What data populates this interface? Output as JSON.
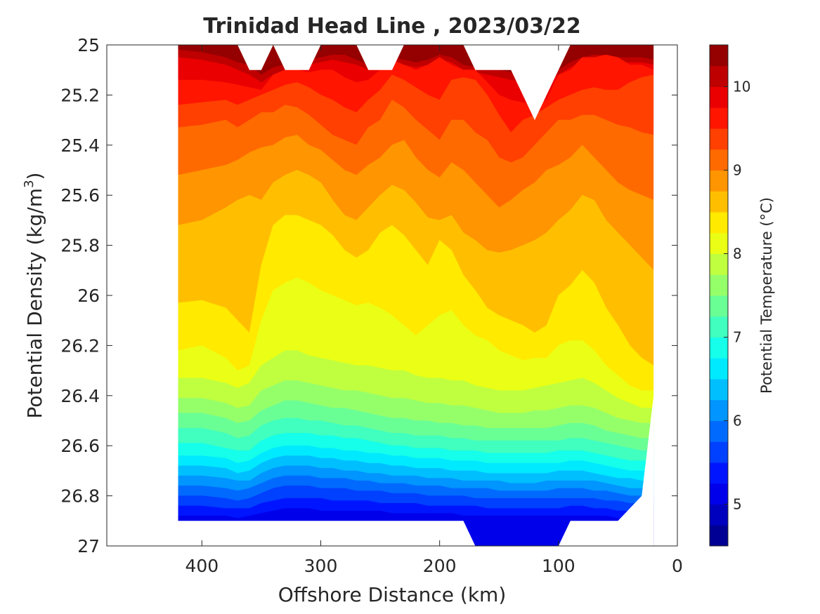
{
  "chart_data": {
    "type": "heatmap",
    "subtype": "filled-contour",
    "title": "Trinidad Head Line , 2023/03/22",
    "xlabel": "Offshore Distance (km)",
    "ylabel_main": "Potential Density (kg/m",
    "ylabel_sup": "3",
    "ylabel_end": ")",
    "xlim": [
      480,
      0
    ],
    "x_reversed": true,
    "ylim": [
      25,
      27
    ],
    "y_reversed": true,
    "x_ticks": [
      400,
      300,
      200,
      100,
      0
    ],
    "x_tick_labels": [
      "400",
      "300",
      "200",
      "100",
      "0"
    ],
    "y_ticks": [
      25,
      25.2,
      25.4,
      25.6,
      25.8,
      26,
      26.2,
      26.4,
      26.6,
      26.8,
      27
    ],
    "y_tick_labels": [
      "25",
      "25.2",
      "25.4",
      "25.6",
      "25.8",
      "26",
      "26.2",
      "26.4",
      "26.6",
      "26.8",
      "27"
    ],
    "colorbar": {
      "label": "Potential Temperature (°C)",
      "range": [
        4.5,
        10.5
      ],
      "step": 0.25,
      "ticks": [
        5,
        6,
        7,
        8,
        9,
        10
      ],
      "tick_labels": [
        "5",
        "6",
        "7",
        "8",
        "9",
        "10"
      ],
      "colormap": "jet"
    },
    "x": [
      420,
      400,
      380,
      370,
      360,
      350,
      340,
      330,
      320,
      310,
      300,
      290,
      280,
      270,
      260,
      250,
      240,
      230,
      220,
      210,
      200,
      190,
      180,
      170,
      160,
      150,
      140,
      130,
      120,
      110,
      100,
      90,
      80,
      70,
      60,
      50,
      40,
      30,
      20
    ],
    "isotherms": [
      {
        "temp": 10.25,
        "y": [
          25.02,
          25.03,
          25.05,
          25.07,
          25.08,
          25.12,
          25.09,
          25.08,
          25.07,
          25.06,
          25.05,
          25.04,
          25.04,
          25.06,
          25.08,
          25.08,
          25.05,
          25.06,
          25.07,
          25.06,
          25.04,
          25.05,
          25.08,
          25.09,
          25.1,
          25.1,
          25.11,
          25.12,
          25.12,
          25.11,
          25.1,
          25.07,
          25.05,
          25.04,
          25.04,
          25.05,
          25.05,
          25.05,
          25.06
        ]
      },
      {
        "temp": 10.0,
        "y": [
          25.05,
          25.06,
          25.08,
          25.1,
          25.12,
          25.15,
          25.12,
          25.1,
          25.09,
          25.08,
          25.07,
          25.06,
          25.07,
          25.08,
          25.1,
          25.1,
          25.07,
          25.08,
          25.09,
          25.08,
          25.06,
          25.07,
          25.1,
          25.11,
          25.12,
          25.13,
          25.14,
          25.15,
          25.15,
          25.14,
          25.12,
          25.09,
          25.07,
          25.06,
          25.06,
          25.07,
          25.07,
          25.07,
          25.08
        ]
      },
      {
        "temp": 9.75,
        "y": [
          25.14,
          25.14,
          25.15,
          25.16,
          25.17,
          25.18,
          25.12,
          25.1,
          25.1,
          25.11,
          25.1,
          25.1,
          25.13,
          25.15,
          25.14,
          25.1,
          25.06,
          25.08,
          25.1,
          25.08,
          25.05,
          25.08,
          25.1,
          25.1,
          25.15,
          25.2,
          25.22,
          25.23,
          25.24,
          25.22,
          25.12,
          25.1,
          25.05,
          25.05,
          25.04,
          25.05,
          25.08,
          25.08,
          25.1
        ]
      },
      {
        "temp": 9.5,
        "y": [
          25.24,
          25.23,
          25.22,
          25.24,
          25.22,
          25.2,
          25.18,
          25.16,
          25.15,
          25.17,
          25.2,
          25.22,
          25.25,
          25.27,
          25.22,
          25.18,
          25.12,
          25.14,
          25.17,
          25.2,
          25.22,
          25.14,
          25.13,
          25.14,
          25.2,
          25.28,
          25.35,
          25.3,
          25.28,
          25.25,
          25.22,
          25.2,
          25.18,
          25.17,
          25.18,
          25.18,
          25.15,
          25.13,
          25.12
        ]
      },
      {
        "temp": 9.25,
        "y": [
          25.33,
          25.32,
          25.3,
          25.33,
          25.3,
          25.27,
          25.27,
          25.24,
          25.25,
          25.28,
          25.32,
          25.36,
          25.38,
          25.4,
          25.33,
          25.3,
          25.22,
          25.25,
          25.3,
          25.34,
          25.38,
          25.3,
          25.3,
          25.35,
          25.38,
          25.45,
          25.47,
          25.45,
          25.4,
          25.35,
          25.3,
          25.3,
          25.28,
          25.28,
          25.3,
          25.32,
          25.33,
          25.35,
          25.36
        ]
      },
      {
        "temp": 9.0,
        "y": [
          25.52,
          25.5,
          25.48,
          25.46,
          25.43,
          25.41,
          25.4,
          25.37,
          25.36,
          25.4,
          25.42,
          25.46,
          25.5,
          25.52,
          25.48,
          25.45,
          25.4,
          25.38,
          25.45,
          25.5,
          25.53,
          25.47,
          25.5,
          25.55,
          25.6,
          25.65,
          25.62,
          25.58,
          25.55,
          25.5,
          25.48,
          25.45,
          25.4,
          25.45,
          25.5,
          25.55,
          25.58,
          25.6,
          25.62
        ]
      },
      {
        "temp": 8.75,
        "y": [
          25.72,
          25.7,
          25.65,
          25.62,
          25.6,
          25.62,
          25.55,
          25.52,
          25.5,
          25.52,
          25.55,
          25.62,
          25.68,
          25.7,
          25.65,
          25.6,
          25.56,
          25.58,
          25.63,
          25.69,
          25.7,
          25.68,
          25.75,
          25.78,
          25.82,
          25.83,
          25.82,
          25.8,
          25.78,
          25.75,
          25.7,
          25.66,
          25.6,
          25.62,
          25.7,
          25.75,
          25.8,
          25.85,
          25.9
        ]
      },
      {
        "temp": 8.5,
        "y": [
          26.03,
          26.02,
          26.05,
          26.1,
          26.15,
          25.88,
          25.72,
          25.68,
          25.68,
          25.7,
          25.72,
          25.76,
          25.82,
          25.85,
          25.82,
          25.75,
          25.72,
          25.76,
          25.82,
          25.88,
          25.78,
          25.82,
          25.92,
          25.98,
          26.05,
          26.08,
          26.1,
          26.12,
          26.15,
          26.12,
          26.0,
          25.96,
          25.9,
          25.95,
          26.05,
          26.12,
          26.2,
          26.25,
          26.28
        ]
      },
      {
        "temp": 8.25,
        "y": [
          26.22,
          26.2,
          26.25,
          26.3,
          26.28,
          26.1,
          25.98,
          25.95,
          25.93,
          25.95,
          25.98,
          26.0,
          26.02,
          26.04,
          26.03,
          26.05,
          26.08,
          26.12,
          26.16,
          26.12,
          26.08,
          26.06,
          26.12,
          26.16,
          26.18,
          26.22,
          26.24,
          26.26,
          26.25,
          26.25,
          26.2,
          26.18,
          26.18,
          26.22,
          26.28,
          26.32,
          26.36,
          26.38,
          26.38
        ]
      },
      {
        "temp": 8.0,
        "y": [
          26.33,
          26.33,
          26.35,
          26.37,
          26.35,
          26.28,
          26.25,
          26.22,
          26.22,
          26.24,
          26.25,
          26.26,
          26.27,
          26.28,
          26.28,
          26.29,
          26.3,
          26.3,
          26.32,
          26.33,
          26.33,
          26.34,
          26.34,
          26.36,
          26.37,
          26.38,
          26.38,
          26.38,
          26.37,
          26.36,
          26.35,
          26.34,
          26.33,
          26.35,
          26.38,
          26.41,
          26.43,
          26.45,
          26.45
        ]
      },
      {
        "temp": 7.75,
        "y": [
          26.41,
          26.41,
          26.43,
          26.45,
          26.44,
          26.38,
          26.36,
          26.34,
          26.34,
          26.35,
          26.36,
          26.37,
          26.38,
          26.38,
          26.39,
          26.4,
          26.41,
          26.41,
          26.42,
          26.43,
          26.43,
          26.44,
          26.44,
          26.45,
          26.46,
          26.47,
          26.47,
          26.47,
          26.46,
          26.46,
          26.45,
          26.44,
          26.44,
          26.45,
          26.47,
          26.49,
          26.5,
          26.51,
          26.51
        ]
      },
      {
        "temp": 7.5,
        "y": [
          26.47,
          26.47,
          26.49,
          26.51,
          26.5,
          26.46,
          26.44,
          26.42,
          26.42,
          26.43,
          26.44,
          26.45,
          26.45,
          26.46,
          26.47,
          26.48,
          26.49,
          26.49,
          26.5,
          26.5,
          26.51,
          26.51,
          26.52,
          26.52,
          26.53,
          26.53,
          26.53,
          26.53,
          26.53,
          26.53,
          26.52,
          26.51,
          26.51,
          26.52,
          26.54,
          26.55,
          26.56,
          26.57,
          26.57
        ]
      },
      {
        "temp": 7.25,
        "y": [
          26.53,
          26.53,
          26.55,
          26.57,
          26.56,
          26.52,
          26.5,
          26.49,
          26.49,
          26.5,
          26.5,
          26.51,
          26.52,
          26.52,
          26.53,
          26.54,
          26.55,
          26.55,
          26.56,
          26.56,
          26.56,
          26.57,
          26.57,
          26.58,
          26.58,
          26.58,
          26.58,
          26.58,
          26.58,
          26.58,
          26.58,
          26.57,
          26.57,
          26.58,
          26.59,
          26.6,
          26.61,
          26.62,
          26.62
        ]
      },
      {
        "temp": 7.0,
        "y": [
          26.59,
          26.59,
          26.61,
          26.62,
          26.62,
          26.58,
          26.56,
          26.55,
          26.55,
          26.55,
          26.56,
          26.56,
          26.57,
          26.57,
          26.58,
          26.59,
          26.6,
          26.6,
          26.61,
          26.61,
          26.61,
          26.62,
          26.62,
          26.62,
          26.63,
          26.63,
          26.63,
          26.63,
          26.63,
          26.63,
          26.62,
          26.62,
          26.62,
          26.63,
          26.64,
          26.65,
          26.66,
          26.66,
          26.66
        ]
      },
      {
        "temp": 6.75,
        "y": [
          26.64,
          26.64,
          26.65,
          26.67,
          26.66,
          26.63,
          26.61,
          26.6,
          26.6,
          26.6,
          26.61,
          26.61,
          26.62,
          26.62,
          26.63,
          26.63,
          26.64,
          26.64,
          26.65,
          26.65,
          26.65,
          26.66,
          26.66,
          26.66,
          26.67,
          26.67,
          26.67,
          26.67,
          26.67,
          26.67,
          26.67,
          26.66,
          26.66,
          26.67,
          26.68,
          26.69,
          26.7,
          26.7,
          26.7
        ]
      },
      {
        "temp": 6.5,
        "y": [
          26.68,
          26.68,
          26.69,
          26.71,
          26.7,
          26.67,
          26.65,
          26.64,
          26.64,
          26.64,
          26.65,
          26.65,
          26.66,
          26.66,
          26.67,
          26.67,
          26.68,
          26.68,
          26.69,
          26.69,
          26.69,
          26.7,
          26.7,
          26.7,
          26.71,
          26.71,
          26.71,
          26.71,
          26.71,
          26.71,
          26.7,
          26.7,
          26.7,
          26.71,
          26.72,
          26.73,
          26.73,
          26.74,
          26.74
        ]
      },
      {
        "temp": 6.25,
        "y": [
          26.72,
          26.72,
          26.73,
          26.74,
          26.74,
          26.71,
          26.69,
          26.68,
          26.68,
          26.68,
          26.69,
          26.69,
          26.7,
          26.7,
          26.71,
          26.71,
          26.72,
          26.72,
          26.72,
          26.73,
          26.73,
          26.73,
          26.74,
          26.74,
          26.74,
          26.74,
          26.75,
          26.75,
          26.75,
          26.74,
          26.74,
          26.74,
          26.74,
          26.74,
          26.75,
          26.76,
          26.77,
          26.77,
          26.77
        ]
      },
      {
        "temp": 6.0,
        "y": [
          26.76,
          26.76,
          26.77,
          26.78,
          26.77,
          26.75,
          26.73,
          26.72,
          26.72,
          26.72,
          26.73,
          26.73,
          26.73,
          26.74,
          26.74,
          26.75,
          26.75,
          26.75,
          26.76,
          26.76,
          26.76,
          26.77,
          26.77,
          26.77,
          26.77,
          26.78,
          26.78,
          26.78,
          26.78,
          26.78,
          26.77,
          26.77,
          26.77,
          26.78,
          26.78,
          26.79,
          26.8,
          26.8,
          26.8
        ]
      },
      {
        "temp": 5.75,
        "y": [
          26.8,
          26.8,
          26.81,
          26.82,
          26.81,
          26.79,
          26.77,
          26.76,
          26.76,
          26.76,
          26.77,
          26.77,
          26.77,
          26.78,
          26.78,
          26.78,
          26.79,
          26.79,
          26.79,
          26.8,
          26.8,
          26.8,
          26.8,
          26.81,
          26.81,
          26.81,
          26.81,
          26.81,
          26.81,
          26.81,
          26.81,
          26.81,
          26.81,
          26.81,
          26.82,
          26.82,
          26.83,
          26.83,
          26.83
        ]
      },
      {
        "temp": 5.5,
        "y": [
          26.84,
          26.84,
          26.85,
          26.85,
          26.85,
          26.83,
          26.82,
          26.81,
          26.81,
          26.81,
          26.81,
          26.82,
          26.82,
          26.82,
          26.82,
          26.83,
          26.83,
          26.83,
          26.83,
          26.84,
          26.84,
          26.84,
          26.84,
          26.84,
          26.85,
          26.85,
          26.85,
          26.85,
          26.85,
          26.85,
          26.85,
          26.84,
          26.84,
          26.85,
          26.85,
          26.86,
          26.86,
          26.86,
          26.86
        ]
      },
      {
        "temp": 5.25,
        "y": [
          26.88,
          26.88,
          26.88,
          26.89,
          26.88,
          26.87,
          26.86,
          26.85,
          26.85,
          26.85,
          26.86,
          26.86,
          26.86,
          26.86,
          26.86,
          26.86,
          26.87,
          26.87,
          26.87,
          26.87,
          26.87,
          26.87,
          26.88,
          26.88,
          26.88,
          26.88,
          26.88,
          26.88,
          26.88,
          26.88,
          26.88,
          26.88,
          26.88,
          26.88,
          26.88,
          26.89,
          26.89,
          26.89,
          26.89
        ]
      }
    ],
    "data_top": [
      25,
      25,
      25,
      25,
      25.1,
      25.1,
      25,
      25.1,
      25.1,
      25.1,
      25,
      25,
      25,
      25,
      25.1,
      25.1,
      25.1,
      25,
      25,
      25,
      25,
      25,
      25,
      25.1,
      25.1,
      25.1,
      25.1,
      25.2,
      25.3,
      25.2,
      25.1,
      25,
      25,
      25,
      25,
      25,
      25,
      25,
      25
    ],
    "data_bottom": [
      26.9,
      26.9,
      26.9,
      26.9,
      26.9,
      26.9,
      26.9,
      26.9,
      26.9,
      26.9,
      26.9,
      26.9,
      26.9,
      26.9,
      26.9,
      26.9,
      26.9,
      26.9,
      26.9,
      26.9,
      26.9,
      26.9,
      26.9,
      27,
      27,
      27,
      27,
      27,
      27,
      27,
      27,
      26.9,
      26.9,
      26.9,
      26.9,
      26.9,
      26.85,
      26.8,
      26.4
    ]
  }
}
